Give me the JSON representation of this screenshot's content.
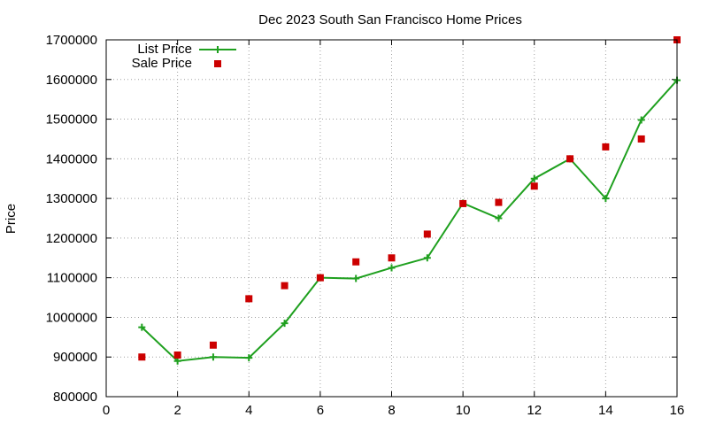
{
  "chart_data": {
    "type": "line",
    "title": "Dec 2023 South San Francisco Home Prices",
    "xlabel": "",
    "ylabel": "Price",
    "xlim": [
      0,
      16
    ],
    "ylim": [
      800000,
      1700000
    ],
    "x_ticks": [
      "0",
      "2",
      "4",
      "6",
      "8",
      "10",
      "12",
      "14",
      "16"
    ],
    "y_ticks": [
      "800000",
      "900000",
      "1000000",
      "1100000",
      "1200000",
      "1300000",
      "1400000",
      "1500000",
      "1600000",
      "1700000"
    ],
    "grid": true,
    "legend_position": "top-left",
    "series": [
      {
        "name": "List Price",
        "style": "line-with-plus-markers",
        "color": "#1fa01f",
        "x": [
          1,
          2,
          3,
          4,
          5,
          6,
          7,
          8,
          9,
          10,
          11,
          12,
          13,
          14,
          15,
          16
        ],
        "values": [
          975000,
          890000,
          900000,
          898000,
          985000,
          1100000,
          1098000,
          1125000,
          1150000,
          1288000,
          1250000,
          1350000,
          1400000,
          1300000,
          1498000,
          1598000
        ]
      },
      {
        "name": "Sale Price",
        "style": "square-markers",
        "color": "#cc0000",
        "x": [
          1,
          2,
          3,
          4,
          5,
          6,
          7,
          8,
          9,
          10,
          11,
          12,
          13,
          14,
          15,
          16
        ],
        "values": [
          900000,
          905000,
          930000,
          1047000,
          1080000,
          1100000,
          1140000,
          1150000,
          1210000,
          1287000,
          1290000,
          1331000,
          1400000,
          1430000,
          1450000,
          1700000
        ]
      }
    ]
  }
}
